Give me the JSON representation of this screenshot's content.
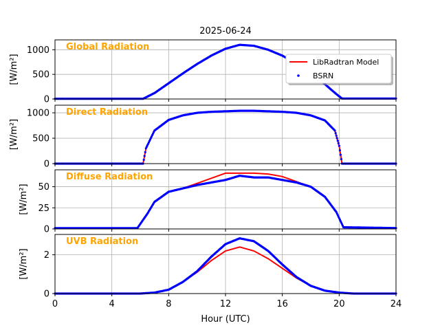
{
  "chart_data": {
    "type": "line",
    "title": "2025-06-24",
    "xlabel": "Hour (UTC)",
    "xlim": [
      0,
      24
    ],
    "xticks": [
      0,
      4,
      8,
      12,
      16,
      20,
      24
    ],
    "grid": true,
    "legend": {
      "placement": "top-right of first panel",
      "entries": [
        {
          "name": "LibRadtran Model",
          "style": "line",
          "color": "#ff0000"
        },
        {
          "name": "BSRN",
          "style": "marker",
          "color": "#0000ff"
        }
      ]
    },
    "label_color": "#ffa500",
    "panels": [
      {
        "label": "Global Radiation",
        "ylabel": "[W/m²]",
        "ylim": [
          0,
          1200
        ],
        "yticks": [
          0,
          500,
          1000
        ],
        "model": {
          "x": [
            0,
            6.2,
            7,
            8,
            9,
            10,
            11,
            12,
            13,
            14,
            15,
            16,
            17,
            18,
            19,
            19.8,
            20.2,
            24
          ],
          "y": [
            5,
            5,
            120,
            320,
            520,
            710,
            880,
            1020,
            1100,
            1080,
            1000,
            880,
            720,
            520,
            300,
            100,
            10,
            10
          ]
        },
        "obs": {
          "x": [
            0,
            6.2,
            7,
            8,
            9,
            10,
            11,
            12,
            13,
            14,
            15,
            16,
            17,
            18,
            19,
            19.8,
            20.2,
            24
          ],
          "y": [
            5,
            5,
            120,
            320,
            520,
            710,
            880,
            1020,
            1100,
            1080,
            1000,
            880,
            720,
            520,
            300,
            100,
            10,
            10
          ]
        }
      },
      {
        "label": "Direct Radiation",
        "ylabel": "[W/m²]",
        "ylim": [
          0,
          1150
        ],
        "yticks": [
          0,
          500,
          1000
        ],
        "model": {
          "x": [
            0,
            6.2,
            6.4,
            7,
            8,
            9,
            10,
            11,
            12,
            13,
            14,
            15,
            16,
            17,
            18,
            19,
            19.7,
            20,
            20.2,
            24
          ],
          "y": [
            0,
            0,
            300,
            650,
            860,
            950,
            1000,
            1020,
            1030,
            1040,
            1040,
            1030,
            1020,
            1000,
            950,
            850,
            650,
            350,
            0,
            0
          ]
        },
        "obs": {
          "x": [
            0,
            6.2,
            6.4,
            7,
            8,
            9,
            10,
            11,
            12,
            13,
            14,
            15,
            16,
            17,
            18,
            19,
            19.7,
            20,
            20.2,
            24
          ],
          "y": [
            0,
            0,
            300,
            650,
            860,
            950,
            1000,
            1020,
            1030,
            1040,
            1040,
            1030,
            1020,
            1000,
            950,
            850,
            650,
            350,
            0,
            0
          ]
        }
      },
      {
        "label": "Diffuse Radiation",
        "ylabel": "[W/m²]",
        "ylim": [
          0,
          70
        ],
        "yticks": [
          0,
          25,
          50
        ],
        "model": {
          "x": [
            0,
            5.8,
            6.5,
            7,
            8,
            9,
            10,
            11,
            12,
            13,
            14,
            15,
            16,
            17,
            18,
            19,
            19.8,
            20.3,
            24
          ],
          "y": [
            1,
            1,
            18,
            32,
            44,
            48,
            54,
            60,
            66,
            66,
            66,
            65,
            62,
            56,
            50,
            38,
            20,
            2,
            1
          ]
        },
        "obs": {
          "x": [
            0,
            5.8,
            6.5,
            7,
            8,
            9,
            10,
            11,
            12,
            13,
            14,
            15,
            16,
            17,
            18,
            19,
            19.8,
            20.3,
            24
          ],
          "y": [
            1,
            1,
            18,
            32,
            44,
            48,
            52,
            55,
            58,
            63,
            61,
            61,
            58,
            55,
            50,
            38,
            20,
            2,
            1
          ]
        }
      },
      {
        "label": "UVB Radiation",
        "ylabel": "[W/m²]",
        "ylim": [
          0,
          3.05
        ],
        "yticks": [
          0,
          2
        ],
        "model": {
          "x": [
            0,
            6,
            7,
            8,
            9,
            10,
            11,
            12,
            13,
            14,
            15,
            16,
            17,
            18,
            19,
            20,
            21,
            24
          ],
          "y": [
            0,
            0,
            0.05,
            0.2,
            0.6,
            1.1,
            1.7,
            2.2,
            2.4,
            2.2,
            1.8,
            1.3,
            0.8,
            0.4,
            0.15,
            0.05,
            0,
            0
          ]
        },
        "obs": {
          "x": [
            0,
            6,
            7,
            8,
            9,
            10,
            11,
            12,
            13,
            14,
            15,
            16,
            17,
            18,
            19,
            20,
            21,
            24
          ],
          "y": [
            0,
            0,
            0.05,
            0.2,
            0.6,
            1.15,
            1.9,
            2.55,
            2.85,
            2.7,
            2.2,
            1.5,
            0.85,
            0.4,
            0.15,
            0.05,
            0,
            0
          ]
        }
      }
    ]
  }
}
